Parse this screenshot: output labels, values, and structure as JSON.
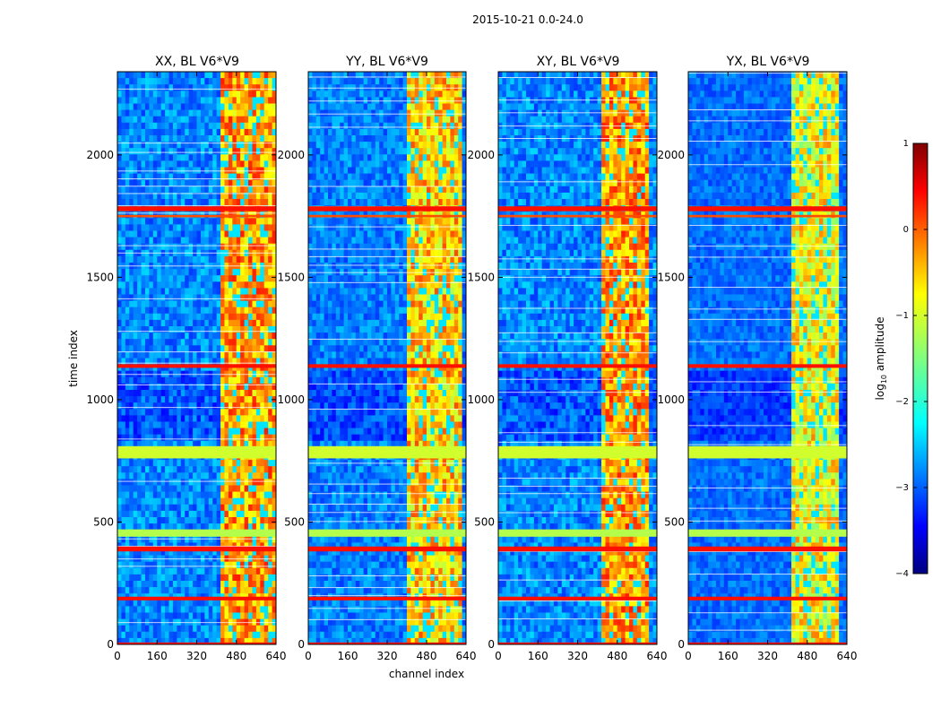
{
  "figure": {
    "suptitle": "2015-10-21 0.0-24.0",
    "xlabel": "channel index",
    "ylabel": "time index"
  },
  "chart_data": {
    "type": "heatmap",
    "title": "2015-10-21 0.0-24.0",
    "xlabel": "channel index",
    "ylabel": "time index",
    "xlim": [
      0,
      640
    ],
    "ylim": [
      0,
      2340
    ],
    "xticks": [
      0,
      160,
      320,
      480,
      640
    ],
    "yticks": [
      0,
      500,
      1000,
      1500,
      2000
    ],
    "panels": [
      {
        "title": "XX, BL V6*V9",
        "band_start": 410,
        "band_end": 640,
        "band_level": 0.6,
        "noise_level": 0.45
      },
      {
        "title": "YY, BL V6*V9",
        "band_start": 400,
        "band_end": 620,
        "band_level": 0.55,
        "noise_level": 0.4
      },
      {
        "title": "XY, BL V6*V9",
        "band_start": 410,
        "band_end": 600,
        "band_level": 0.6,
        "noise_level": 0.45
      },
      {
        "title": "YX, BL V6*V9",
        "band_start": 410,
        "band_end": 600,
        "band_level": 0.5,
        "noise_level": 0.3
      }
    ],
    "flagged_rows": [
      {
        "start": 0,
        "end": 8,
        "level": 0.86
      },
      {
        "start": 180,
        "end": 195,
        "level": 0.86
      },
      {
        "start": 380,
        "end": 400,
        "level": 0.86
      },
      {
        "start": 440,
        "end": 470,
        "level": 0.55
      },
      {
        "start": 760,
        "end": 810,
        "level": 0.58
      },
      {
        "start": 1130,
        "end": 1145,
        "level": 0.86
      },
      {
        "start": 1770,
        "end": 1790,
        "level": 0.86
      },
      {
        "start": 1745,
        "end": 1755,
        "level": 0.8
      }
    ],
    "colorbar": {
      "label": "log10 amplitude",
      "range": [
        -4,
        1
      ],
      "ticks": [
        -4,
        -3,
        -2,
        -1,
        0,
        1
      ],
      "tick_labels": [
        "−4",
        "−3",
        "−2",
        "−1",
        "0",
        "1"
      ],
      "colormap": "jet"
    }
  }
}
